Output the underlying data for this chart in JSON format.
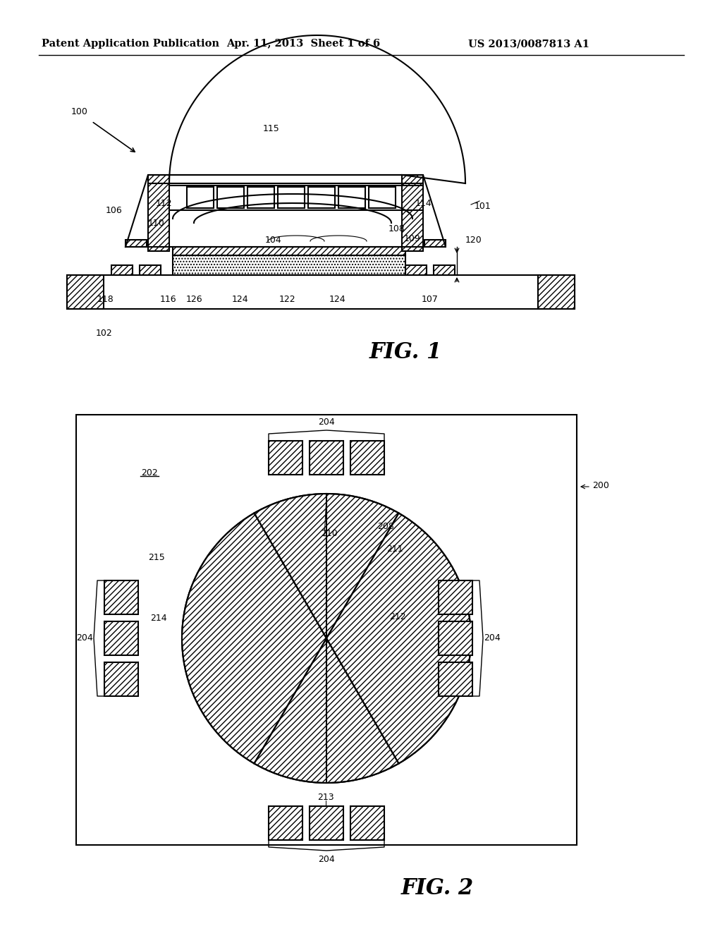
{
  "header_left": "Patent Application Publication",
  "header_mid": "Apr. 11, 2013  Sheet 1 of 6",
  "header_right": "US 2013/0087813 A1",
  "fig1_label": "FIG. 1",
  "fig2_label": "FIG. 2",
  "bg_color": "#ffffff",
  "line_color": "#000000"
}
